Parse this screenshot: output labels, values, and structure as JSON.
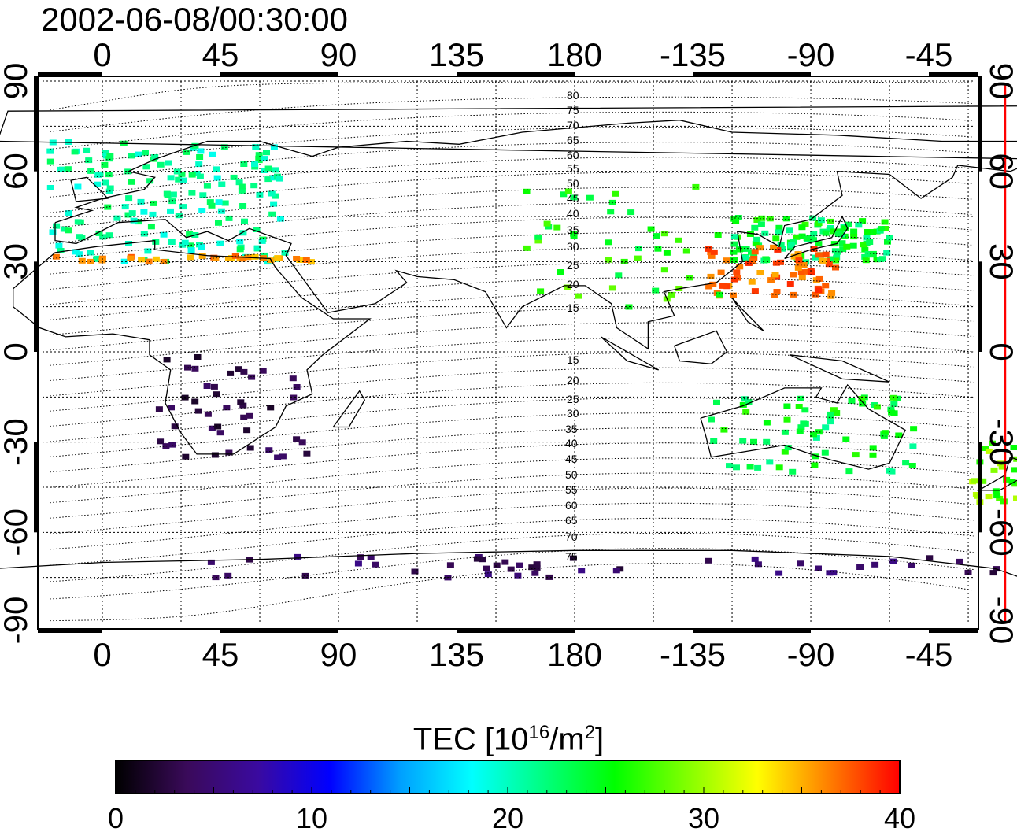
{
  "title": "2002-06-08/00:30:00",
  "map": {
    "longitude_ticks": [
      "0",
      "45",
      "90",
      "135",
      "180",
      "-135",
      "-90",
      "-45"
    ],
    "latitude_ticks": [
      "90",
      "60",
      "30",
      "0",
      "-30",
      "-60",
      "-90"
    ],
    "meridian_marker_longitude": 172,
    "meridian_marker_color": "#ff0000",
    "contour_labels_north": [
      "80",
      "75",
      "70",
      "65",
      "60",
      "55",
      "50",
      "45",
      "40",
      "35",
      "30",
      "25",
      "20",
      "15"
    ],
    "contour_labels_south": [
      "15",
      "20",
      "25",
      "30",
      "35",
      "40",
      "45",
      "50",
      "55",
      "60",
      "65",
      "70",
      "75"
    ]
  },
  "colorbar": {
    "label_main": "TEC  [10",
    "label_exp1": "16",
    "label_mid": "/m",
    "label_exp2": "2",
    "label_end": "]",
    "tick_labels": [
      "0",
      "10",
      "20",
      "30",
      "40"
    ],
    "range": [
      0,
      40
    ],
    "colors": [
      "#000000",
      "#3a0a5a",
      "#3a0aa0",
      "#0000ff",
      "#00a0ff",
      "#00ffff",
      "#00ff80",
      "#00ff00",
      "#80ff00",
      "#ffff00",
      "#ff8000",
      "#ff0000"
    ]
  }
}
